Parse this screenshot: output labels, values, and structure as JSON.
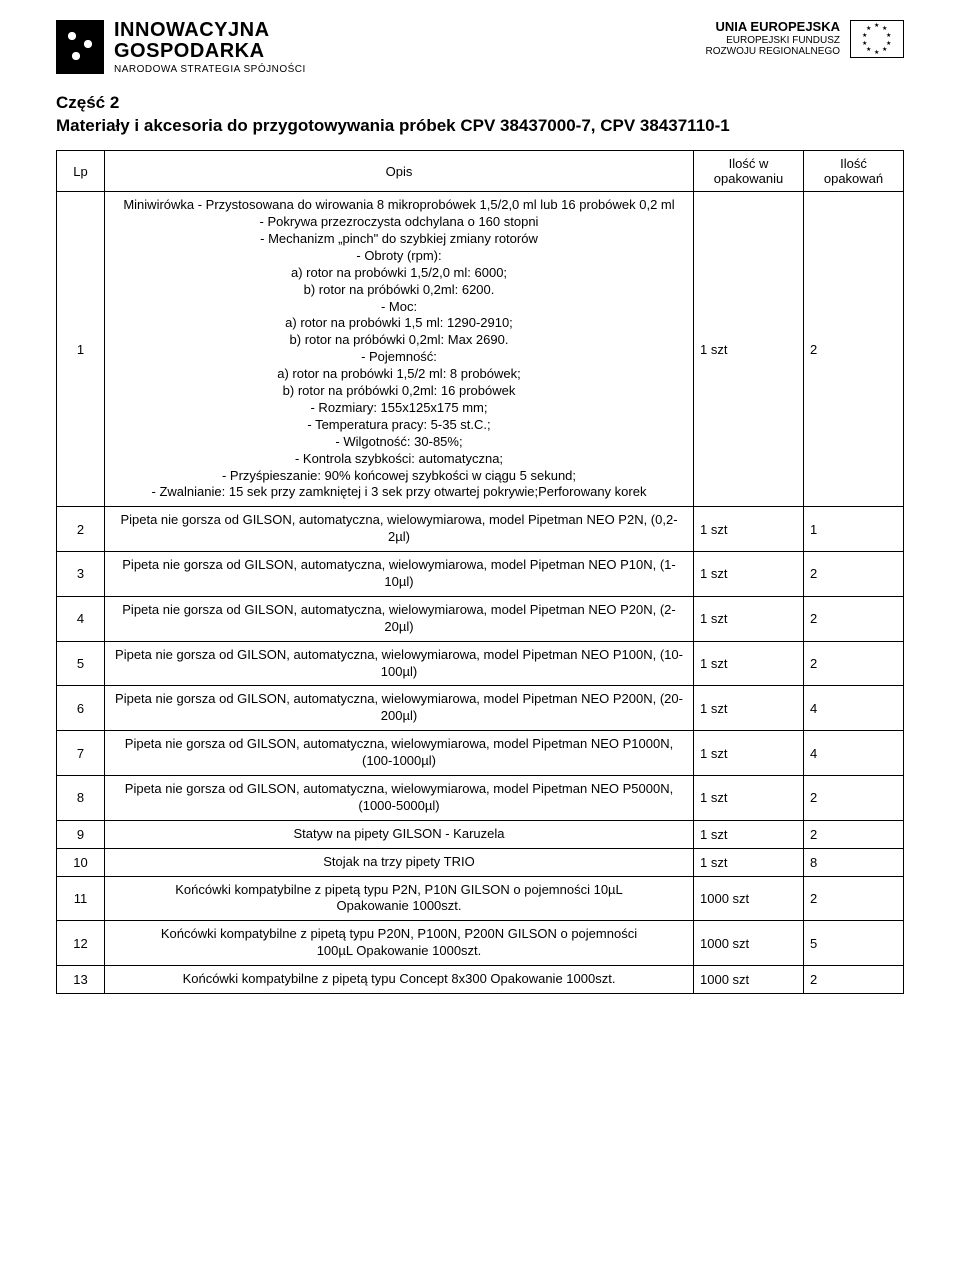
{
  "header": {
    "left_logo": {
      "line1": "INNOWACYJNA",
      "line2": "GOSPODARKA",
      "line3": "NARODOWA STRATEGIA SPÓJNOŚCI"
    },
    "right_logo": {
      "line1": "UNIA EUROPEJSKA",
      "line2": "EUROPEJSKI FUNDUSZ",
      "line3": "ROZWOJU REGIONALNEGO"
    }
  },
  "section": {
    "title": "Część 2",
    "subtitle": "Materiały i akcesoria do przygotowywania próbek CPV 38437000-7, CPV 38437110-1"
  },
  "table": {
    "headers": {
      "lp": "Lp",
      "opis": "Opis",
      "qty": "Ilość w opakowaniu",
      "packs": "Ilość opakowań"
    },
    "rows": [
      {
        "lp": "1",
        "opis": "Miniwirówka - Przystosowana do  wirowania 8 mikroprobówek 1,5/2,0 ml lub 16 probówek 0,2 ml\n- Pokrywa przezroczysta odchylana o 160 stopni\n- Mechanizm „pinch\" do szybkiej zmiany rotorów\n- Obroty (rpm):\na) rotor na probówki 1,5/2,0 ml: 6000;\nb) rotor na próbówki 0,2ml: 6200.\n- Moc:\na) rotor na probówki 1,5 ml: 1290-2910;\nb) rotor na próbówki 0,2ml: Max 2690.\n- Pojemność:\na) rotor na probówki 1,5/2 ml: 8 probówek;\nb) rotor na próbówki 0,2ml: 16 probówek\n- Rozmiary: 155x125x175 mm;\n- Temperatura pracy: 5-35 st.C.;\n- Wilgotność: 30-85%;\n- Kontrola szybkości: automatyczna;\n- Przyśpieszanie: 90% końcowej szybkości w ciągu 5 sekund;\n- Zwalnianie: 15 sek przy zamkniętej i 3 sek przy otwartej pokrywie;Perforowany korek",
        "qty": "1 szt",
        "packs": "2"
      },
      {
        "lp": "2",
        "opis": "Pipeta  nie gorsza od GILSON, automatyczna, wielowymiarowa, model Pipetman NEO P2N, (0,2-2µl)",
        "qty": "1 szt",
        "packs": "1"
      },
      {
        "lp": "3",
        "opis": "Pipeta nie gorsza od GILSON, automatyczna, wielowymiarowa, model Pipetman NEO P10N, (1-10µl)",
        "qty": "1 szt",
        "packs": "2"
      },
      {
        "lp": "4",
        "opis": "Pipeta nie gorsza od GILSON, automatyczna, wielowymiarowa, model Pipetman NEO P20N, (2-20µl)",
        "qty": "1 szt",
        "packs": "2"
      },
      {
        "lp": "5",
        "opis": "Pipeta nie gorsza od GILSON, automatyczna, wielowymiarowa, model Pipetman NEO P100N, (10-100µl)",
        "qty": "1 szt",
        "packs": "2"
      },
      {
        "lp": "6",
        "opis": "Pipeta nie gorsza od GILSON, automatyczna, wielowymiarowa, model Pipetman NEO P200N, (20-200µl)",
        "qty": "1 szt",
        "packs": "4"
      },
      {
        "lp": "7",
        "opis": "Pipeta nie gorsza od GILSON, automatyczna, wielowymiarowa, model Pipetman NEO P1000N, (100-1000µl)",
        "qty": "1 szt",
        "packs": "4"
      },
      {
        "lp": "8",
        "opis": "Pipeta nie gorsza od GILSON, automatyczna, wielowymiarowa, model Pipetman NEO P5000N, (1000-5000µl)",
        "qty": "1 szt",
        "packs": "2"
      },
      {
        "lp": "9",
        "opis": "Statyw na pipety GILSON - Karuzela",
        "qty": "1 szt",
        "packs": "2"
      },
      {
        "lp": "10",
        "opis": "Stojak na trzy pipety TRIO",
        "qty": "1 szt",
        "packs": "8"
      },
      {
        "lp": "11",
        "opis": "Końcówki kompatybilne z pipetą typu P2N, P10N GILSON o pojemności 10µL\nOpakowanie 1000szt.",
        "qty": "1000 szt",
        "packs": "2"
      },
      {
        "lp": "12",
        "opis": "Końcówki kompatybilne z pipetą typu P20N, P100N, P200N GILSON o pojemności\n100µL Opakowanie 1000szt.",
        "qty": "1000 szt",
        "packs": "5"
      },
      {
        "lp": "13",
        "opis": "Końcówki kompatybilne z pipetą typu Concept 8x300 Opakowanie 1000szt.",
        "qty": "1000 szt",
        "packs": "2"
      }
    ]
  }
}
